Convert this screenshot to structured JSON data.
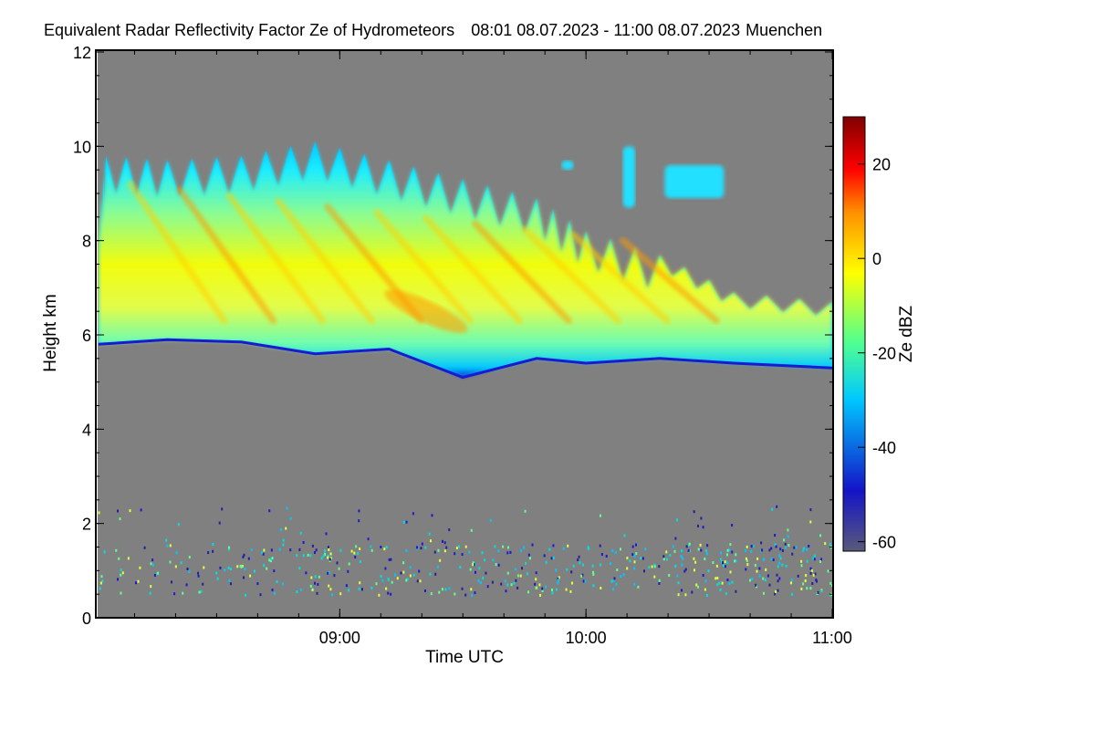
{
  "chart_data": {
    "type": "heatmap",
    "title": "Equivalent Radar Reflectivity Factor Ze of Hydrometeors",
    "time_range": "08:01 08.07.2023 - 11:00 08.07.2023",
    "location": "Muenchen",
    "xlabel": "Time UTC",
    "ylabel": "Height km",
    "x_range_hours": [
      8.0167,
      11.0
    ],
    "xticks": [
      {
        "value": 9.0,
        "label": "09:00"
      },
      {
        "value": 10.0,
        "label": "10:00"
      },
      {
        "value": 11.0,
        "label": "11:00"
      }
    ],
    "ylim": [
      0,
      12
    ],
    "yticks": [
      0,
      2,
      4,
      6,
      8,
      10,
      12
    ],
    "colorbar": {
      "label": "Ze dBZ",
      "range": [
        -62,
        30
      ],
      "ticks": [
        20,
        0,
        -20,
        -40,
        -60
      ],
      "colors": [
        "#5a5a7a",
        "#0000c8",
        "#00c8ff",
        "#60ff80",
        "#ffff00",
        "#ff8000",
        "#ff0000",
        "#800000"
      ]
    },
    "background_color": "#808080",
    "cloud_layer": {
      "description": "cirrus fall streaks",
      "base_km": [
        {
          "t": 8.02,
          "h": 5.8
        },
        {
          "t": 8.3,
          "h": 5.9
        },
        {
          "t": 8.6,
          "h": 5.85
        },
        {
          "t": 8.9,
          "h": 5.6
        },
        {
          "t": 9.2,
          "h": 5.7
        },
        {
          "t": 9.5,
          "h": 5.1
        },
        {
          "t": 9.8,
          "h": 5.5
        },
        {
          "t": 10.0,
          "h": 5.4
        },
        {
          "t": 10.3,
          "h": 5.5
        },
        {
          "t": 10.6,
          "h": 5.4
        },
        {
          "t": 11.0,
          "h": 5.3
        }
      ],
      "top_km": [
        {
          "t": 8.02,
          "h": 8.5
        },
        {
          "t": 8.05,
          "h": 9.8
        },
        {
          "t": 8.3,
          "h": 9.7
        },
        {
          "t": 8.6,
          "h": 9.8
        },
        {
          "t": 8.9,
          "h": 10.1
        },
        {
          "t": 9.2,
          "h": 9.7
        },
        {
          "t": 9.5,
          "h": 9.3
        },
        {
          "t": 9.8,
          "h": 8.9
        },
        {
          "t": 10.0,
          "h": 8.2
        },
        {
          "t": 10.3,
          "h": 7.7
        },
        {
          "t": 10.6,
          "h": 6.9
        },
        {
          "t": 11.0,
          "h": 6.7
        }
      ],
      "peak_ze_dbz": 5
    },
    "isolated_patches": [
      {
        "t": [
          9.9,
          9.95
        ],
        "h": [
          9.5,
          9.7
        ],
        "ze_dbz": -22
      },
      {
        "t": [
          10.15,
          10.2
        ],
        "h": [
          8.7,
          10.0
        ],
        "ze_dbz": -20
      },
      {
        "t": [
          10.32,
          10.56
        ],
        "h": [
          8.9,
          9.6
        ],
        "ze_dbz": -20
      }
    ],
    "low_level_clutter": {
      "height_km": [
        0.5,
        2.4
      ],
      "ze_dbz_range": [
        -45,
        -10
      ]
    }
  }
}
